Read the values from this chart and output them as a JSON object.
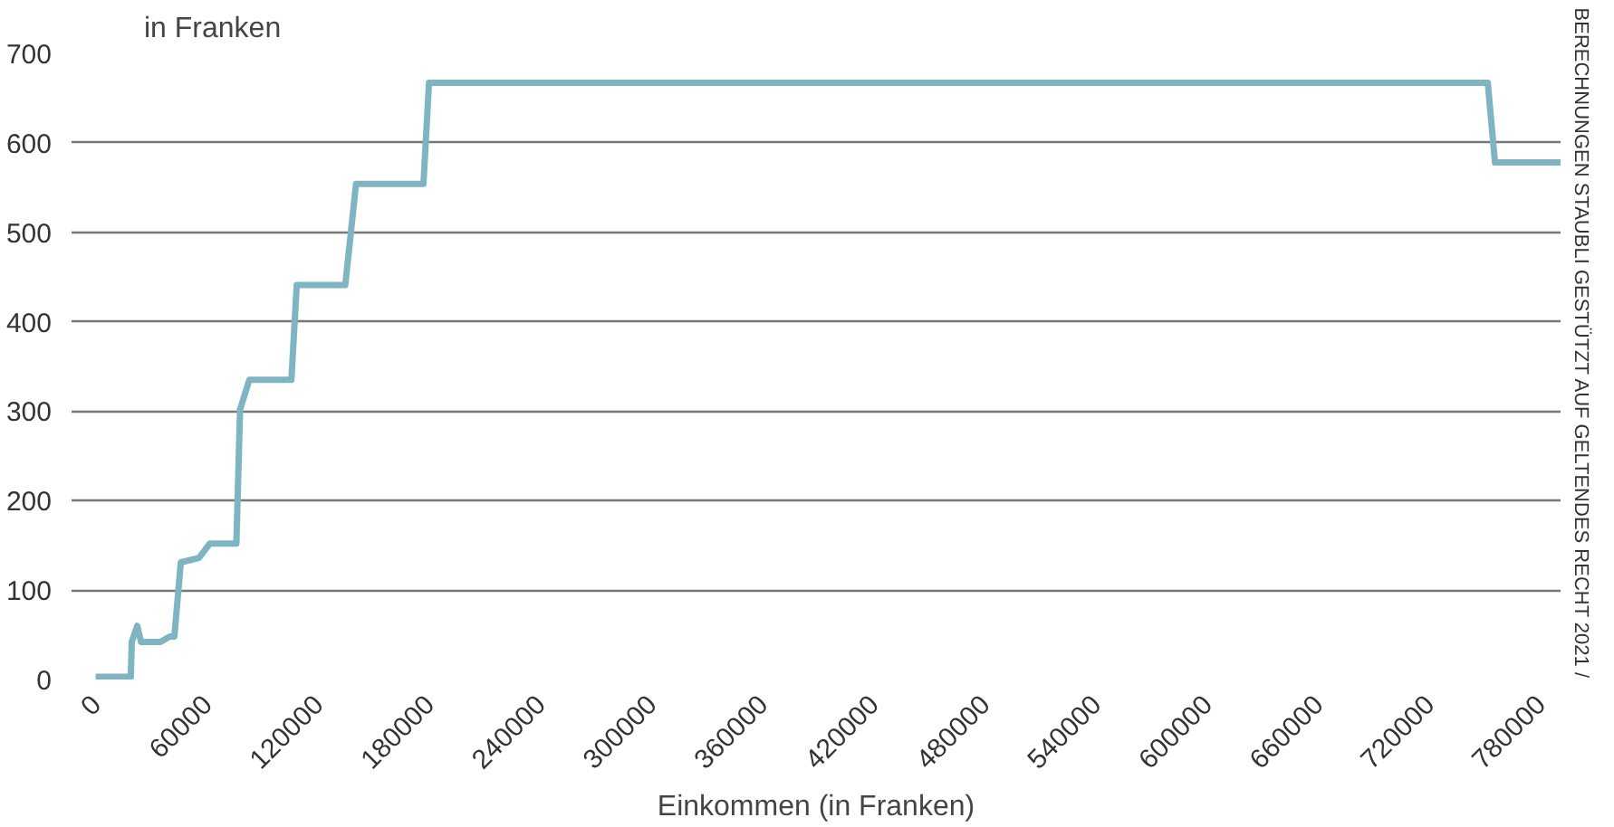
{
  "chart_data": {
    "type": "line",
    "xlabel": "Einkommen (in Franken)",
    "ylabel": "in Franken",
    "annotations": [
      "BERECHNUNGEN STAUBLI GESTÜTZT AUF GELTENDES RECHT 2021 /"
    ],
    "x": [
      0,
      19000,
      19500,
      22500,
      24500,
      35000,
      40000,
      42500,
      46000,
      55800,
      61700,
      76000,
      78000,
      83000,
      105700,
      108600,
      134800,
      140600,
      177000,
      180000,
      751700,
      755600,
      791000
    ],
    "series": [
      {
        "color": "#7fb5c3",
        "values": [
          3,
          3,
          42,
          60,
          42,
          42,
          48,
          48,
          131,
          136,
          152,
          152,
          302,
          335,
          335,
          441,
          441,
          554,
          554,
          667,
          667,
          578,
          578
        ]
      }
    ],
    "xlim": [
      -13000,
      791000
    ],
    "ylim": [
      0,
      700
    ],
    "xticks": [
      0,
      60000,
      120000,
      180000,
      240000,
      300000,
      360000,
      420000,
      480000,
      540000,
      600000,
      660000,
      720000,
      780000
    ],
    "yticks": [
      0,
      100,
      200,
      300,
      400,
      500,
      600,
      700
    ],
    "grid": "y",
    "marker": "none",
    "line_style": "solid"
  }
}
